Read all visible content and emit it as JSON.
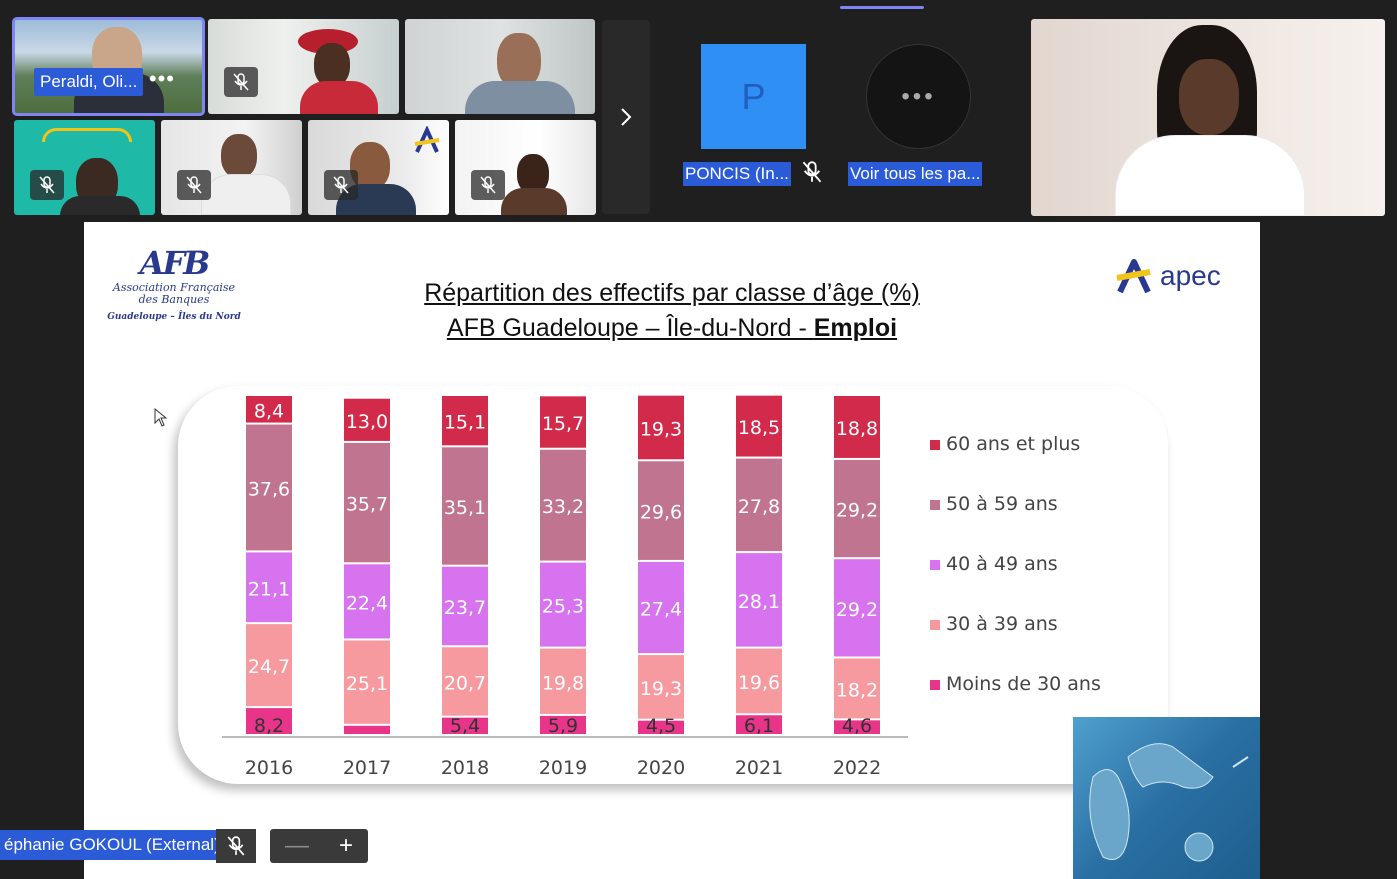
{
  "participants": {
    "peraldi_label": "Peraldi, Oli...",
    "more": "•••",
    "poncis_initial": "P",
    "poncis_label": "PONCIS (In...",
    "voir_label": "Voir tous les pa...",
    "voir_dots": "•••"
  },
  "slide": {
    "afb_mark": "AFB",
    "afb_line1": "Association Française",
    "afb_line2": "des Banques",
    "afb_sub": "Guadeloupe – Îles du Nord",
    "apec": "apec",
    "title_line1": "Répartition des effectifs par classe d’âge (%)",
    "title_line2_plain": "AFB Guadeloupe – Île-du-Nord - ",
    "title_line2_bold": "Emploi"
  },
  "chart_data": {
    "type": "bar",
    "stacked": true,
    "categories": [
      "2016",
      "2017",
      "2018",
      "2019",
      "2020",
      "2021",
      "2022"
    ],
    "series": [
      {
        "name": "Moins de 30 ans",
        "color": "#e8358a",
        "values": [
          8.2,
          3.0,
          5.4,
          5.9,
          4.5,
          6.1,
          4.6
        ],
        "labels": [
          "8,2",
          "",
          "5,4",
          "5,9",
          "4,5",
          "6,1",
          "4,6"
        ]
      },
      {
        "name": "30 à 39 ans",
        "color": "#f79aa0",
        "values": [
          24.7,
          25.1,
          20.7,
          19.8,
          19.3,
          19.6,
          18.2
        ],
        "labels": [
          "24,7",
          "25,1",
          "20,7",
          "19,8",
          "19,3",
          "19,6",
          "18,2"
        ]
      },
      {
        "name": "40 à 49 ans",
        "color": "#d873f0",
        "values": [
          21.1,
          22.4,
          23.7,
          25.3,
          27.4,
          28.1,
          29.2
        ],
        "labels": [
          "21,1",
          "22,4",
          "23,7",
          "25,3",
          "27,4",
          "28,1",
          "29,2"
        ]
      },
      {
        "name": "50 à 59 ans",
        "color": "#c0748f",
        "values": [
          37.6,
          35.7,
          35.1,
          33.2,
          29.6,
          27.8,
          29.2
        ],
        "labels": [
          "37,6",
          "35,7",
          "35,1",
          "33,2",
          "29,6",
          "27,8",
          "29,2"
        ]
      },
      {
        "name": "60 ans et plus",
        "color": "#d12a4a",
        "values": [
          8.4,
          13.0,
          15.1,
          15.7,
          19.3,
          18.5,
          18.8
        ],
        "labels": [
          "8,4",
          "13,0",
          "15,1",
          "15,7",
          "19,3",
          "18,5",
          "18,8"
        ]
      }
    ],
    "legend_order": [
      "60 ans et plus",
      "50 à 59 ans",
      "40 à 49 ans",
      "30 à 39 ans",
      "Moins de 30 ans"
    ],
    "legend_position": "right",
    "ylim": [
      0,
      100
    ]
  },
  "footer": {
    "name_label": "éphanie GOKOUL (External)",
    "zoom_minus": "—",
    "zoom_plus": "+"
  }
}
